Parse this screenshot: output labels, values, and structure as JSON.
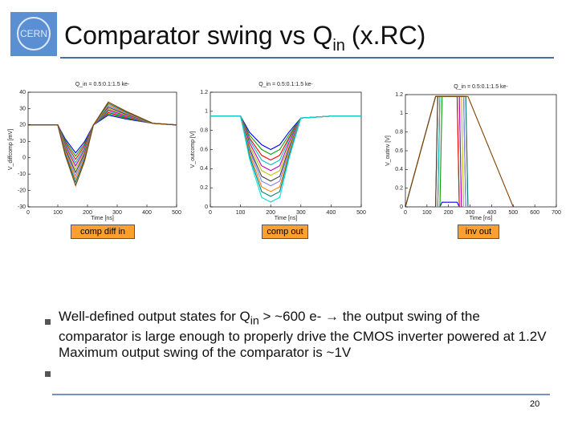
{
  "header": {
    "logo_text": "CERN",
    "title": "Comparator swing vs Q",
    "title_sub": "in",
    "title_suffix": "(x.RC)"
  },
  "chart_data": [
    {
      "type": "line",
      "title": "Q_in = 0.5:0.1:1.5 ke-",
      "xlabel": "Time [ns]",
      "ylabel": "V_diffcomp [mV]",
      "xlim": [
        0,
        500
      ],
      "xticks": [
        0,
        100,
        200,
        300,
        400,
        500
      ],
      "ylim": [
        -30,
        40
      ],
      "yticks": [
        -30,
        -20,
        -10,
        0,
        10,
        20,
        30,
        40
      ],
      "grid": false,
      "x": [
        0,
        100,
        125,
        160,
        190,
        220,
        270,
        330,
        420,
        500
      ],
      "series": [
        {
          "color": "#0000ff",
          "values": [
            20,
            20,
            11.5,
            3,
            9.8,
            20,
            26,
            23.6,
            21,
            20
          ]
        },
        {
          "color": "#00a000",
          "values": [
            20,
            20,
            10.5,
            1,
            8.6,
            20,
            26.8,
            24.1,
            21,
            20
          ]
        },
        {
          "color": "#ff0000",
          "values": [
            20,
            20,
            9.5,
            -1,
            7.4,
            20,
            27.6,
            24.6,
            21,
            20
          ]
        },
        {
          "color": "#00bfbf",
          "values": [
            20,
            20,
            8.5,
            -3,
            6.2,
            20,
            28.4,
            25,
            21,
            20
          ]
        },
        {
          "color": "#bf00bf",
          "values": [
            20,
            20,
            7.5,
            -5,
            5,
            20,
            29.2,
            25.5,
            21,
            20
          ]
        },
        {
          "color": "#bfbf00",
          "values": [
            20,
            20,
            6.5,
            -7,
            3.8,
            20,
            30,
            26,
            21,
            20
          ]
        },
        {
          "color": "#404040",
          "values": [
            20,
            20,
            5.5,
            -9,
            2.6,
            20,
            30.8,
            26.5,
            21,
            20
          ]
        },
        {
          "color": "#8080ff",
          "values": [
            20,
            20,
            4.5,
            -11,
            1.4,
            20,
            31.6,
            27,
            21,
            20
          ]
        },
        {
          "color": "#ff8000",
          "values": [
            20,
            20,
            3.5,
            -13,
            0.2,
            20,
            32.4,
            27.4,
            21,
            20
          ]
        },
        {
          "color": "#008080",
          "values": [
            20,
            20,
            2.5,
            -15,
            -1,
            20,
            33.2,
            27.9,
            21,
            20
          ]
        },
        {
          "color": "#804000",
          "values": [
            20,
            20,
            1.5,
            -17,
            -2.2,
            20,
            34,
            28.4,
            21,
            20
          ]
        }
      ]
    },
    {
      "type": "line",
      "title": "Q_in = 0.5:0.1:1.5 ke-",
      "xlabel": "Time [ns]",
      "ylabel": "V_outcomp [V]",
      "xlim": [
        0,
        500
      ],
      "xticks": [
        0,
        100,
        200,
        300,
        400,
        500
      ],
      "ylim": [
        0,
        1.2
      ],
      "yticks": [
        0,
        0.2,
        0.4,
        0.6,
        0.8,
        1,
        1.2
      ],
      "grid": false,
      "x": [
        0,
        100,
        130,
        170,
        200,
        230,
        260,
        300,
        400,
        500
      ],
      "series": [
        {
          "color": "#0000ff",
          "values": [
            0.95,
            0.95,
            0.78,
            0.65,
            0.6,
            0.65,
            0.78,
            0.93,
            0.95,
            0.95
          ]
        },
        {
          "color": "#00a000",
          "values": [
            0.95,
            0.95,
            0.75,
            0.6,
            0.55,
            0.6,
            0.75,
            0.93,
            0.95,
            0.95
          ]
        },
        {
          "color": "#ff0000",
          "values": [
            0.95,
            0.95,
            0.72,
            0.54,
            0.49,
            0.54,
            0.72,
            0.93,
            0.95,
            0.95
          ]
        },
        {
          "color": "#00bfbf",
          "values": [
            0.95,
            0.95,
            0.7,
            0.49,
            0.44,
            0.49,
            0.7,
            0.93,
            0.95,
            0.95
          ]
        },
        {
          "color": "#bf00bf",
          "values": [
            0.95,
            0.95,
            0.67,
            0.43,
            0.38,
            0.43,
            0.67,
            0.93,
            0.95,
            0.95
          ]
        },
        {
          "color": "#bfbf00",
          "values": [
            0.95,
            0.95,
            0.64,
            0.38,
            0.33,
            0.38,
            0.64,
            0.93,
            0.95,
            0.95
          ]
        },
        {
          "color": "#404040",
          "values": [
            0.95,
            0.95,
            0.61,
            0.32,
            0.27,
            0.32,
            0.61,
            0.93,
            0.95,
            0.95
          ]
        },
        {
          "color": "#8080ff",
          "values": [
            0.95,
            0.95,
            0.59,
            0.27,
            0.22,
            0.27,
            0.59,
            0.93,
            0.95,
            0.95
          ]
        },
        {
          "color": "#ff8000",
          "values": [
            0.95,
            0.95,
            0.56,
            0.21,
            0.16,
            0.21,
            0.56,
            0.93,
            0.95,
            0.95
          ]
        },
        {
          "color": "#008080",
          "values": [
            0.95,
            0.95,
            0.53,
            0.16,
            0.11,
            0.16,
            0.53,
            0.93,
            0.95,
            0.95
          ]
        },
        {
          "color": "#00e0e0",
          "values": [
            0.95,
            0.95,
            0.5,
            0.1,
            0.05,
            0.1,
            0.5,
            0.93,
            0.95,
            0.95
          ]
        }
      ]
    },
    {
      "type": "line",
      "title": "Q_in = 0.5:0.1:1.5 ke-",
      "xlabel": "Time [ns]",
      "ylabel": "V_outinv [V]",
      "xlim": [
        0,
        700
      ],
      "xticks": [
        0,
        100,
        200,
        300,
        400,
        500,
        600,
        700
      ],
      "ylim": [
        0,
        1.2
      ],
      "yticks": [
        0,
        0.2,
        0.4,
        0.6,
        0.8,
        1,
        1.2
      ],
      "grid": false,
      "x": [
        0,
        140,
        150,
        160,
        170,
        240,
        250,
        260,
        270,
        280,
        290,
        500
      ],
      "series": [
        {
          "color": "#0000ff",
          "values": [
            0,
            0,
            0,
            0,
            0.05,
            0.05,
            0,
            0,
            0,
            0,
            0,
            0
          ]
        },
        {
          "color": "#00a000",
          "values": [
            0,
            0,
            0,
            0,
            1.18,
            1.18,
            0,
            0,
            0,
            0,
            0,
            0
          ]
        },
        {
          "color": "#ff0000",
          "values": [
            0,
            0,
            0,
            1.18,
            1.18,
            1.18,
            0,
            0,
            0,
            0,
            0,
            0
          ]
        },
        {
          "color": "#00bfbf",
          "values": [
            0,
            0,
            0,
            1.18,
            1.18,
            1.18,
            1.18,
            0,
            0,
            0,
            0,
            0
          ]
        },
        {
          "color": "#bf00bf",
          "values": [
            0,
            0,
            1.18,
            1.18,
            1.18,
            1.18,
            1.18,
            0,
            0,
            0,
            0,
            0
          ]
        },
        {
          "color": "#bfbf00",
          "values": [
            0,
            0,
            1.18,
            1.18,
            1.18,
            1.18,
            1.18,
            1.18,
            0,
            0,
            0,
            0
          ]
        },
        {
          "color": "#404040",
          "values": [
            0,
            0,
            1.18,
            1.18,
            1.18,
            1.18,
            1.18,
            1.18,
            1.18,
            0,
            0,
            0
          ]
        },
        {
          "color": "#8080ff",
          "values": [
            0,
            1.18,
            1.18,
            1.18,
            1.18,
            1.18,
            1.18,
            1.18,
            1.18,
            0,
            0,
            0
          ]
        },
        {
          "color": "#ff8000",
          "values": [
            0,
            1.18,
            1.18,
            1.18,
            1.18,
            1.18,
            1.18,
            1.18,
            1.18,
            1.18,
            0,
            0
          ]
        },
        {
          "color": "#008080",
          "values": [
            0,
            1.18,
            1.18,
            1.18,
            1.18,
            1.18,
            1.18,
            1.18,
            1.18,
            1.18,
            0,
            0
          ]
        },
        {
          "color": "#804000",
          "values": [
            0,
            1.18,
            1.18,
            1.18,
            1.18,
            1.18,
            1.18,
            1.18,
            1.18,
            1.18,
            1.18,
            0
          ]
        }
      ]
    }
  ],
  "captions": [
    "comp diff in",
    "comp out",
    "inv out"
  ],
  "bullets": [
    {
      "text": "Well-defined output states for Q",
      "sub": "in",
      "rest": "> ~600 e- → the output swing of the comparator is large enough to properly drive the CMOS inverter powered at 1.2V"
    },
    {
      "text": "Maximum output swing of the comparator is ~1V"
    }
  ],
  "page_number": "20"
}
